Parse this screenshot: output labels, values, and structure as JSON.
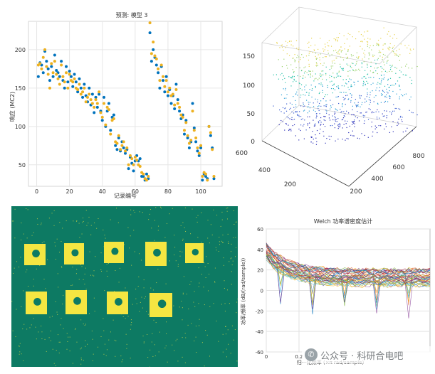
{
  "colors": {
    "blue": "#0072bd",
    "orange": "#edb120",
    "teal": "#0d7a63",
    "yellow": "#f5e642",
    "grid": "#e6e6e6"
  },
  "chart_data": [
    {
      "type": "scatter",
      "title": "预测: 模型 3",
      "xlabel": "记录编号",
      "ylabel": "响应 (MC2)",
      "xlim": [
        -5,
        113
      ],
      "ylim": [
        22,
        237
      ],
      "xticks": [
        0,
        20,
        40,
        60,
        80,
        100
      ],
      "yticks": [
        50,
        100,
        150,
        200
      ],
      "grid": true,
      "series": [
        {
          "marker": "blue",
          "x": [
            1,
            2,
            3,
            4,
            5,
            6,
            7,
            8,
            9,
            10,
            11,
            12,
            13,
            14,
            15,
            16,
            17,
            18,
            19,
            20,
            21,
            22,
            23,
            24,
            25,
            26,
            27,
            28,
            29,
            30,
            31,
            32,
            33,
            34,
            35,
            36,
            37,
            38,
            39,
            40,
            41,
            42,
            43,
            44,
            45,
            46,
            47,
            48,
            49,
            50,
            51,
            52,
            53,
            54,
            55,
            56,
            57,
            58,
            59,
            60,
            61,
            62,
            63,
            64,
            65,
            66,
            67,
            68,
            69,
            70,
            71,
            72,
            73,
            74,
            75,
            76,
            77,
            78,
            79,
            80,
            81,
            82,
            83,
            84,
            85,
            86,
            87,
            88,
            89,
            90,
            91,
            92,
            93,
            94,
            95,
            96,
            97,
            98,
            99,
            100,
            101,
            102,
            103,
            104,
            105,
            106,
            107,
            108
          ],
          "y": [
            165,
            183,
            180,
            170,
            198,
            185,
            175,
            160,
            178,
            165,
            193,
            173,
            170,
            165,
            185,
            160,
            150,
            178,
            158,
            172,
            165,
            152,
            168,
            158,
            145,
            162,
            150,
            138,
            155,
            140,
            132,
            150,
            128,
            142,
            118,
            138,
            125,
            142,
            120,
            108,
            138,
            100,
            120,
            130,
            95,
            112,
            115,
            75,
            70,
            85,
            68,
            80,
            72,
            65,
            70,
            45,
            60,
            52,
            42,
            55,
            62,
            55,
            58,
            35,
            35,
            30,
            38,
            32,
            222,
            185,
            200,
            190,
            180,
            170,
            150,
            178,
            160,
            145,
            165,
            140,
            148,
            130,
            140,
            123,
            155,
            135,
            120,
            110,
            115,
            90,
            108,
            85,
            72,
            80,
            130,
            98,
            80,
            68,
            62,
            72,
            30,
            38,
            35,
            32,
            100,
            88,
            72,
            32
          ],
          "visible_n": 108
        },
        {
          "marker": "orange",
          "x": [
            1,
            2,
            3,
            4,
            5,
            6,
            7,
            8,
            9,
            10,
            11,
            12,
            13,
            14,
            15,
            16,
            17,
            18,
            19,
            20,
            21,
            22,
            23,
            24,
            25,
            26,
            27,
            28,
            29,
            30,
            31,
            32,
            33,
            34,
            35,
            36,
            37,
            38,
            39,
            40,
            41,
            42,
            43,
            44,
            45,
            46,
            47,
            48,
            49,
            50,
            51,
            52,
            53,
            54,
            55,
            56,
            57,
            58,
            59,
            60,
            61,
            62,
            63,
            64,
            65,
            66,
            67,
            68,
            69,
            70,
            71,
            72,
            73,
            74,
            75,
            76,
            77,
            78,
            79,
            80,
            81,
            82,
            83,
            84,
            85,
            86,
            87,
            88,
            89,
            90,
            91,
            92,
            93,
            94,
            95,
            96,
            97,
            98,
            99,
            100,
            101,
            102,
            103,
            104,
            105,
            106,
            107,
            108
          ],
          "y": [
            180,
            182,
            175,
            190,
            200,
            178,
            168,
            150,
            182,
            170,
            185,
            168,
            162,
            155,
            180,
            165,
            158,
            170,
            150,
            168,
            160,
            158,
            162,
            150,
            148,
            155,
            142,
            145,
            150,
            132,
            138,
            142,
            135,
            130,
            125,
            135,
            130,
            145,
            118,
            112,
            130,
            102,
            125,
            122,
            90,
            108,
            110,
            80,
            78,
            88,
            70,
            75,
            80,
            68,
            72,
            50,
            62,
            58,
            50,
            60,
            56,
            50,
            48,
            40,
            38,
            32,
            30,
            35,
            235,
            195,
            210,
            192,
            188,
            175,
            160,
            180,
            165,
            152,
            160,
            145,
            150,
            140,
            142,
            128,
            148,
            130,
            125,
            115,
            112,
            95,
            105,
            88,
            78,
            82,
            120,
            95,
            85,
            72,
            65,
            75,
            35,
            40,
            38,
            30,
            100,
            92,
            70,
            35
          ],
          "visible_n": 108
        }
      ]
    },
    {
      "type": "scatter3d",
      "zticks": [
        "0",
        "50",
        "100",
        "150"
      ],
      "yticks": [
        "200",
        "400",
        "600"
      ],
      "xticks": [
        "200",
        "400",
        "600",
        "800"
      ]
    },
    {
      "type": "heatmap",
      "description_hidden": true
    },
    {
      "type": "line",
      "title": "Welch 功率谱密度估计",
      "xlabel": "归一化频率 (×π rad/sample)",
      "ylabel": "功率/频率 (dB/(rad/sample))",
      "ylim": [
        -60,
        60
      ],
      "yticks": [
        -60,
        -40,
        -20,
        0,
        20,
        40,
        60
      ],
      "xticks": [
        "0",
        "0.2"
      ],
      "grid": true
    }
  ],
  "watermark": {
    "text": "公众号 · 科研合电吧",
    "icon": "wechat-icon"
  }
}
